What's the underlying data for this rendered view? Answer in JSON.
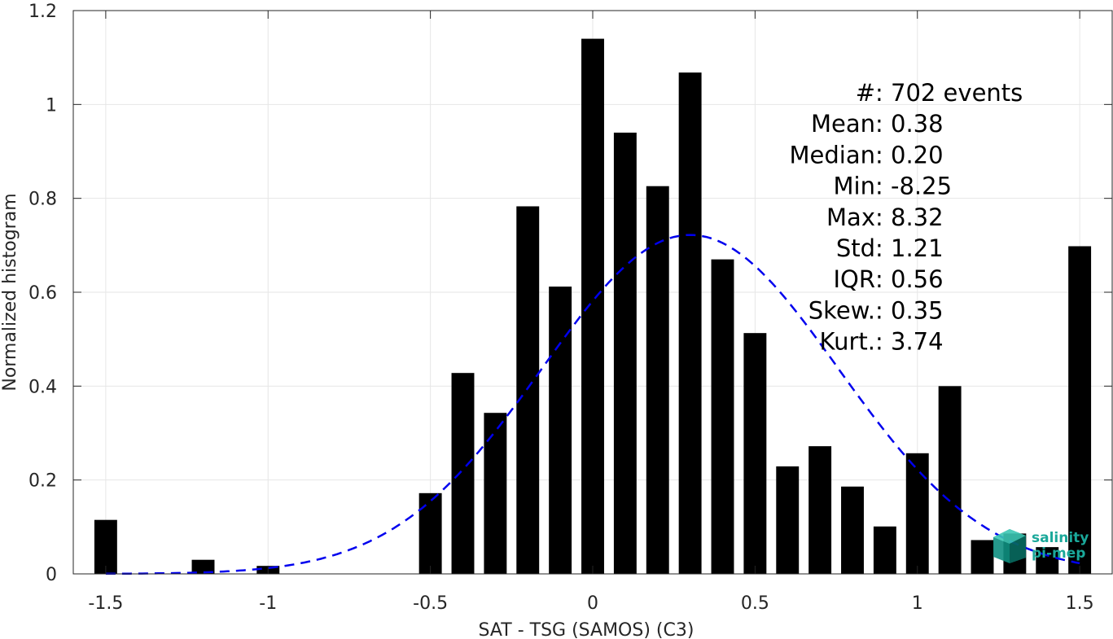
{
  "chart_data": {
    "type": "bar",
    "xlabel": "SAT - TSG (SAMOS) (C3)",
    "ylabel": "Normalized histogram",
    "xlim": [
      -1.6,
      1.6
    ],
    "ylim": [
      0,
      1.2
    ],
    "xticks": [
      "-1.5",
      "-1",
      "-0.5",
      "0",
      "0.5",
      "1",
      "1.5"
    ],
    "xtick_values": [
      -1.5,
      -1,
      -0.5,
      0,
      0.5,
      1,
      1.5
    ],
    "yticks": [
      "0",
      "0.2",
      "0.4",
      "0.6",
      "0.8",
      "1",
      "1.2"
    ],
    "ytick_values": [
      0,
      0.2,
      0.4,
      0.6,
      0.8,
      1,
      1.2
    ],
    "grid": true,
    "bar_color": "#000000",
    "bar_width": 0.07,
    "bars": [
      {
        "x": -1.5,
        "y": 0.115
      },
      {
        "x": -1.2,
        "y": 0.03
      },
      {
        "x": -1.0,
        "y": 0.017
      },
      {
        "x": -0.5,
        "y": 0.172
      },
      {
        "x": -0.4,
        "y": 0.428
      },
      {
        "x": -0.3,
        "y": 0.343
      },
      {
        "x": -0.2,
        "y": 0.783
      },
      {
        "x": -0.1,
        "y": 0.612
      },
      {
        "x": 0.0,
        "y": 1.14
      },
      {
        "x": 0.1,
        "y": 0.94
      },
      {
        "x": 0.2,
        "y": 0.826
      },
      {
        "x": 0.3,
        "y": 1.068
      },
      {
        "x": 0.4,
        "y": 0.67
      },
      {
        "x": 0.5,
        "y": 0.513
      },
      {
        "x": 0.6,
        "y": 0.229
      },
      {
        "x": 0.7,
        "y": 0.272
      },
      {
        "x": 0.8,
        "y": 0.186
      },
      {
        "x": 0.9,
        "y": 0.101
      },
      {
        "x": 1.0,
        "y": 0.257
      },
      {
        "x": 1.1,
        "y": 0.4
      },
      {
        "x": 1.2,
        "y": 0.072
      },
      {
        "x": 1.3,
        "y": 0.086
      },
      {
        "x": 1.4,
        "y": 0.057
      },
      {
        "x": 1.5,
        "y": 0.698
      }
    ],
    "fit_curve": {
      "style": "dashed",
      "color": "#0000ee",
      "peak_x": 0.3,
      "peak_y": 0.722,
      "sigma": 0.456,
      "x_range": [
        -1.5,
        1.5
      ]
    },
    "stats": [
      {
        "label": "#  ",
        "value": ": 702 events"
      },
      {
        "label": "Mean ",
        "value": ": 0.38"
      },
      {
        "label": "Median ",
        "value": ": 0.20"
      },
      {
        "label": "Min ",
        "value": ": -8.25"
      },
      {
        "label": "Max ",
        "value": ": 8.32"
      },
      {
        "label": "Std ",
        "value": ": 1.21"
      },
      {
        "label": "IQR ",
        "value": ": 0.56"
      },
      {
        "label": "Skew. ",
        "value": ": 0.35"
      },
      {
        "label": "Kurt. ",
        "value": ": 3.74"
      }
    ]
  },
  "logo": {
    "line1": "salinity",
    "line2": "pi-mep",
    "color": "#1aa89a"
  }
}
